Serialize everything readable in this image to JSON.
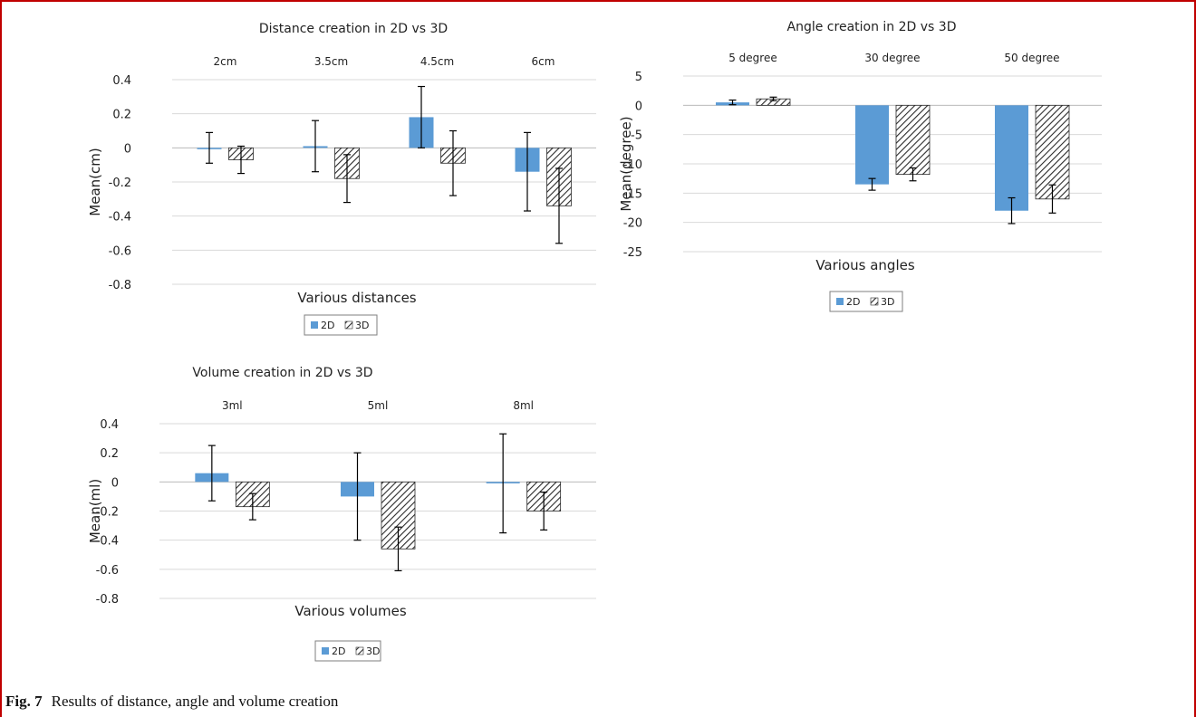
{
  "figure": {
    "caption_label": "Fig. 7",
    "caption_text": "Results of distance, angle and volume creation",
    "border_color": "#c00000"
  },
  "colors": {
    "2D": "#5b9bd5",
    "3D_hatch": "#2a2a2a"
  },
  "chart_data": [
    {
      "type": "bar",
      "title": "Distance creation in 2D vs 3D",
      "xlabel": "Various distances",
      "ylabel": "Mean(cm)",
      "categories": [
        "2cm",
        "3.5cm",
        "4.5cm",
        "6cm"
      ],
      "yticks": [
        "0.4",
        "0.2",
        "0",
        "-0.2",
        "-0.4",
        "-0.6",
        "-0.8"
      ],
      "ylim": [
        -0.8,
        0.4
      ],
      "grid": true,
      "legend": "bottom-center",
      "series": [
        {
          "name": "2D",
          "values": [
            0.0,
            0.01,
            0.18,
            -0.14
          ],
          "errors": [
            0.09,
            0.15,
            0.18,
            0.23
          ]
        },
        {
          "name": "3D",
          "values": [
            -0.07,
            -0.18,
            -0.09,
            -0.34
          ],
          "errors": [
            0.08,
            0.14,
            0.19,
            0.22
          ]
        }
      ]
    },
    {
      "type": "bar",
      "title": "Angle creation in 2D vs 3D",
      "xlabel": "Various angles",
      "ylabel": "Mean(degree)",
      "categories": [
        "5 degree",
        "30 degree",
        "50 degree"
      ],
      "yticks": [
        "5",
        "0",
        "-5",
        "-10",
        "-15",
        "-20",
        "-25"
      ],
      "ylim": [
        -25,
        5
      ],
      "grid": true,
      "legend": "bottom-center",
      "series": [
        {
          "name": "2D",
          "values": [
            0.5,
            -13.5,
            -18.0
          ],
          "errors": [
            0.4,
            1.0,
            2.2
          ]
        },
        {
          "name": "3D",
          "values": [
            1.1,
            -11.8,
            -16.0
          ],
          "errors": [
            0.3,
            1.1,
            2.4
          ]
        }
      ]
    },
    {
      "type": "bar",
      "title": "Volume creation in 2D vs 3D",
      "xlabel": "Various volumes",
      "ylabel": "Mean(ml)",
      "categories": [
        "3ml",
        "5ml",
        "8ml"
      ],
      "yticks": [
        "0.4",
        "0.2",
        "0",
        "-0.2",
        "-0.4",
        "-0.6",
        "-0.8"
      ],
      "ylim": [
        -0.8,
        0.4
      ],
      "grid": true,
      "legend": "bottom-center",
      "series": [
        {
          "name": "2D",
          "values": [
            0.06,
            -0.1,
            -0.01
          ],
          "errors": [
            0.19,
            0.3,
            0.34
          ]
        },
        {
          "name": "3D",
          "values": [
            -0.17,
            -0.46,
            -0.2
          ],
          "errors": [
            0.09,
            0.15,
            0.13
          ]
        }
      ]
    }
  ]
}
